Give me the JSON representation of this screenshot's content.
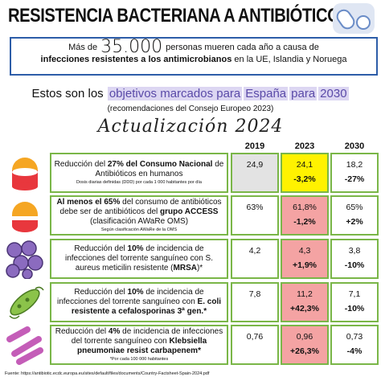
{
  "title": "RESISTENCIA BACTERIANA A ANTIBIÓTICOS",
  "banner": {
    "prefix": "Más de",
    "number": "35.000",
    "line1": "personas mueren cada año a causa de",
    "bold": "infecciones resistentes a los antimicrobianos",
    "line2": "en la UE, Islandia y Noruega"
  },
  "subtitle": {
    "intro": "Estos son los",
    "highlight": [
      "objetivos marcados para",
      "España",
      "para",
      "2030"
    ]
  },
  "recommendation": "(recomendaciones del Consejo Europeo 2023)",
  "update": "Actualización 2024",
  "columns": [
    "2019",
    "2023",
    "2030"
  ],
  "rows": [
    {
      "text": [
        "Reducción del ",
        "27% del Consumo Nacional",
        " de Antibióticos en humanos"
      ],
      "note": "Dosis diarias definidas (DDD) por cada 1 000 habitantes por día",
      "v2019": "24,9",
      "v2023": "24,1",
      "change2023": "-3,2%",
      "v2030": "18,2",
      "change2030": "-27%"
    },
    {
      "text": [
        "Al menos el 65%",
        " del consumo de antibióticos debe ser de antibióticos del ",
        "grupo ACCESS",
        " (clasificación AWaRe OMS)"
      ],
      "note": "Según clasificación AWaRe de la OMS",
      "v2019": "63%",
      "v2023": "61,8%",
      "change2023": "-1,2%",
      "v2030": "65%",
      "change2030": "+2%"
    },
    {
      "text": [
        "Reducción del ",
        "10%",
        " de incidencia de infecciones del torrente sanguíneo con S. aureus meticilin resistente (",
        "MRSA",
        ")*"
      ],
      "v2019": "4,2",
      "v2023": "4,3",
      "change2023": "+1,9%",
      "v2030": "3,8",
      "change2030": "-10%"
    },
    {
      "text": [
        "Reducción del ",
        "10%",
        " de incidencia de infecciones del torrente sanguíneo con ",
        "E. coli resistente a cefalosporinas 3ª gen.*"
      ],
      "v2019": "7,8",
      "v2023": "11,2",
      "change2023": "+42,3%",
      "v2030": "7,1",
      "change2030": "-10%"
    },
    {
      "text": [
        "Reducción del ",
        "4%",
        " de incidencia de infecciones del torrente sanguíneo con ",
        "Klebsiella pneumoniae resist carbapenem*"
      ],
      "note": "*Por cada 100 000 habitantes",
      "v2019": "0,76",
      "v2023": "0,96",
      "change2023": "+26,3%",
      "v2030": "0,73",
      "change2030": "-4%"
    }
  ],
  "footer": "Fuente: https://antibiotic.ecdc.europa.eu/sites/default/files/documents/Country-Factsheet-Spain-2024.pdf"
}
